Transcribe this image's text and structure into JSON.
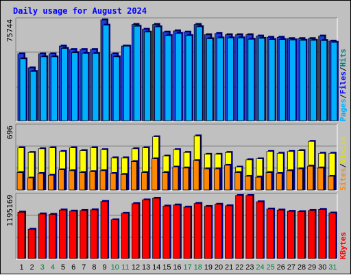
{
  "chart_data": {
    "type": "bar",
    "title": "Daily usage for August 2024",
    "days": [
      "1",
      "2",
      "3",
      "4",
      "5",
      "6",
      "7",
      "8",
      "9",
      "10",
      "11",
      "12",
      "13",
      "14",
      "15",
      "16",
      "17",
      "18",
      "19",
      "20",
      "21",
      "22",
      "23",
      "24",
      "25",
      "26",
      "27",
      "28",
      "29",
      "30",
      "31"
    ],
    "weekend_days": [
      "3",
      "4",
      "10",
      "11",
      "17",
      "18",
      "24",
      "25",
      "31"
    ],
    "panels": [
      {
        "id": "traffic",
        "scale_label": "75744",
        "ylim": [
          0,
          75744
        ],
        "series": [
          {
            "name": "Hits",
            "color": "#1a9dd8",
            "values": [
              50200,
              39700,
              50200,
              50200,
              56100,
              53500,
              53500,
              53500,
              75744,
              50200,
              56100,
              72300,
              68700,
              72300,
              66600,
              67500,
              66600,
              72300,
              64600,
              65500,
              64600,
              64600,
              64600,
              63600,
              62700,
              62700,
              61700,
              61700,
              61700,
              63600,
              59800
            ]
          },
          {
            "name": "Files",
            "color": "#00b0ff",
            "values": [
              46500,
              37000,
              48000,
              48000,
              54300,
              51200,
              50500,
              50400,
              71800,
              48000,
              56000,
              71000,
              66600,
              70500,
              64000,
              65600,
              64000,
              70600,
              61600,
              62200,
              62200,
              62200,
              61200,
              61900,
              61000,
              61000,
              60700,
              60400,
              60400,
              60200,
              58900
            ]
          },
          {
            "name": "Pages",
            "color": "#1a9dd8",
            "values": [
              50200,
              39700,
              50200,
              50200,
              56100,
              53500,
              53500,
              53500,
              75744,
              50200,
              56100,
              72300,
              68700,
              72300,
              66600,
              67500,
              66600,
              72300,
              64600,
              65500,
              64600,
              64600,
              64600,
              63600,
              62700,
              62700,
              61700,
              61700,
              61700,
              63600,
              59800
            ]
          }
        ],
        "right_labels": [
          {
            "text": "Pages",
            "color": "#00b0ff"
          },
          {
            "text": "/",
            "color": "#000000"
          },
          {
            "text": "Files",
            "color": "#0000ff"
          },
          {
            "text": "/",
            "color": "#000000"
          },
          {
            "text": "Hits",
            "color": "#008080"
          }
        ]
      },
      {
        "id": "visits",
        "scale_label": "696",
        "ylim": [
          0,
          696
        ],
        "series": [
          {
            "name": "Visits",
            "color": "#ffff00",
            "values": [
              460,
              410,
              450,
              460,
              420,
              460,
              430,
              460,
              440,
              350,
              350,
              450,
              460,
              580,
              370,
              440,
              410,
              590,
              390,
              390,
              410,
              250,
              330,
              340,
              420,
              400,
              420,
              430,
              530,
              400,
              400
            ]
          },
          {
            "name": "Sites",
            "color": "#ff8800",
            "values": [
              190,
              130,
              180,
              160,
              220,
              210,
              190,
              200,
              210,
              180,
              170,
              310,
              190,
              340,
              190,
              250,
              240,
              320,
              230,
              230,
              270,
              190,
              150,
              140,
              190,
              180,
              210,
              230,
              260,
              240,
              150
            ]
          }
        ],
        "right_labels": [
          {
            "text": "Sites",
            "color": "#ff8800"
          },
          {
            "text": "/",
            "color": "#000000"
          },
          {
            "text": "Visits",
            "color": "#e0e000"
          }
        ]
      },
      {
        "id": "kbytes",
        "scale_label": "1195169",
        "ylim": [
          0,
          1195169
        ],
        "series": [
          {
            "name": "KBytes",
            "color": "#ff0000",
            "values": [
              879000,
              556000,
              845000,
              836000,
              920000,
              899000,
              910000,
              923000,
              1081000,
              734000,
              859000,
              1040000,
              1111000,
              1143000,
              994000,
              1015000,
              975000,
              1043000,
              988000,
              1029000,
              999000,
              1195169,
              1195169,
              1075000,
              938000,
              919000,
              895000,
              889000,
              910000,
              931000,
              863000
            ]
          }
        ],
        "right_labels": [
          {
            "text": "KBytes",
            "color": "#ff0000"
          }
        ]
      }
    ]
  }
}
